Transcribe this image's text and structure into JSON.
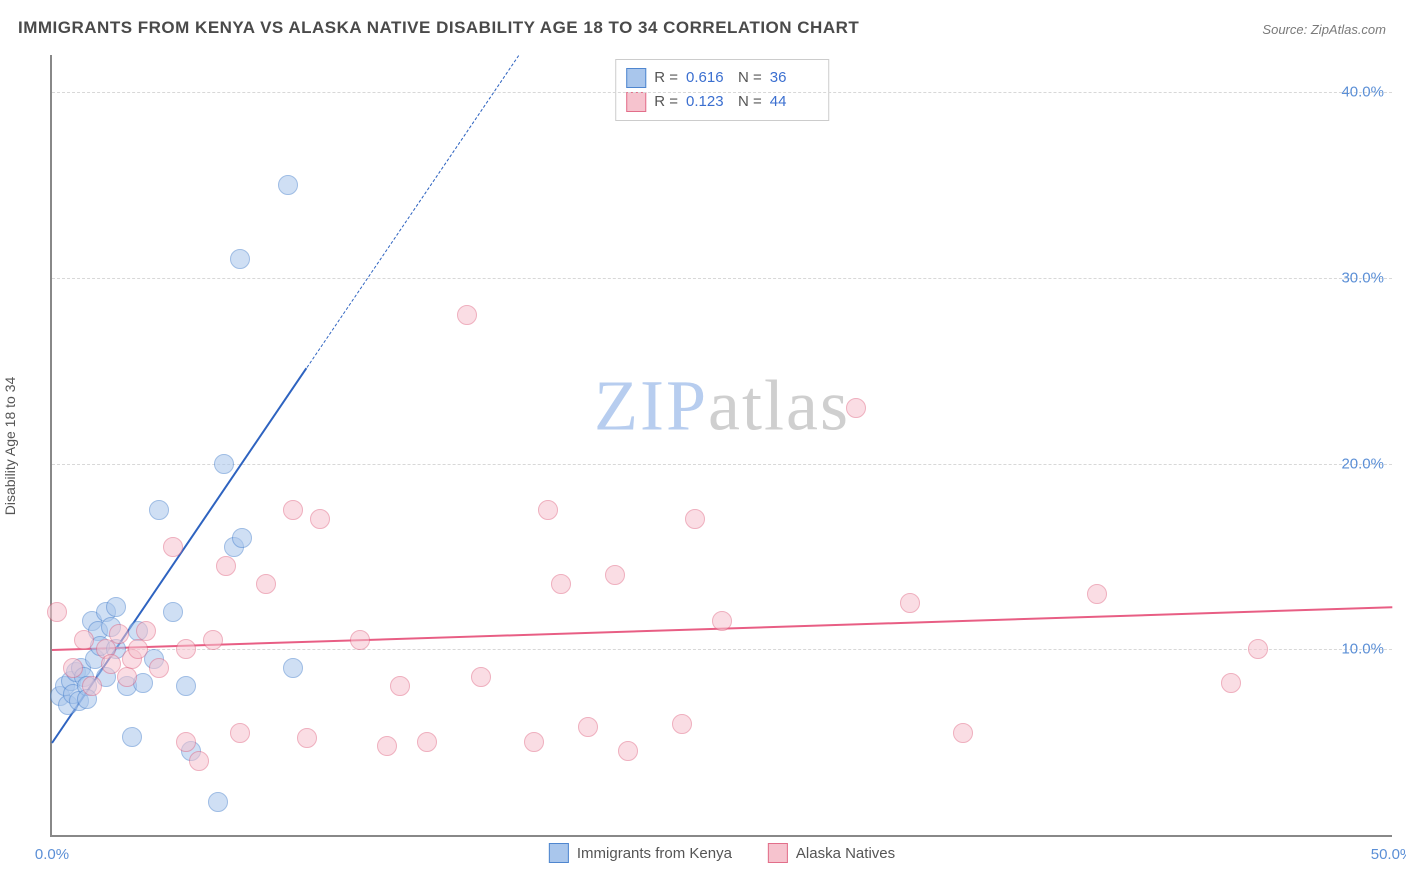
{
  "title": "IMMIGRANTS FROM KENYA VS ALASKA NATIVE DISABILITY AGE 18 TO 34 CORRELATION CHART",
  "source_label": "Source:",
  "source_value": "ZipAtlas.com",
  "y_axis_title": "Disability Age 18 to 34",
  "watermark_a": "ZIP",
  "watermark_b": "atlas",
  "chart": {
    "type": "scatter",
    "xlim": [
      0,
      50
    ],
    "ylim": [
      0,
      42
    ],
    "x_ticks": [
      0,
      50
    ],
    "x_tick_labels": [
      "0.0%",
      "50.0%"
    ],
    "y_ticks": [
      10,
      20,
      30,
      40
    ],
    "y_tick_labels": [
      "10.0%",
      "20.0%",
      "30.0%",
      "40.0%"
    ],
    "grid_color": "#d8d8d8",
    "axis_color": "#888888",
    "background_color": "#ffffff",
    "tick_label_color": "#5b8fd6",
    "tick_fontsize": 15,
    "title_fontsize": 17,
    "title_color": "#4a4a4a",
    "marker_radius": 9,
    "marker_opacity": 0.55,
    "series": [
      {
        "key": "kenya",
        "label": "Immigrants from Kenya",
        "marker_fill": "#a9c6ec",
        "marker_stroke": "#4f86cf",
        "trend_color": "#2e63c0",
        "trend_width": 2.5,
        "trend_dash_extension": true,
        "R": "0.616",
        "N": "36",
        "trend": {
          "x1": 0,
          "y1": 5.0,
          "x2": 9.5,
          "y2": 25.2
        },
        "trend_ext": {
          "x1": 9.5,
          "y1": 25.2,
          "x2": 17.4,
          "y2": 42.0
        },
        "points": [
          [
            0.3,
            7.5
          ],
          [
            0.5,
            8.0
          ],
          [
            0.6,
            7.0
          ],
          [
            0.7,
            8.3
          ],
          [
            0.8,
            7.6
          ],
          [
            0.9,
            8.8
          ],
          [
            1.0,
            7.2
          ],
          [
            1.1,
            9.0
          ],
          [
            1.2,
            8.5
          ],
          [
            1.3,
            8.0
          ],
          [
            1.3,
            7.3
          ],
          [
            1.5,
            11.5
          ],
          [
            1.6,
            9.5
          ],
          [
            1.7,
            11.0
          ],
          [
            1.8,
            10.2
          ],
          [
            2.0,
            12.0
          ],
          [
            2.0,
            8.5
          ],
          [
            2.2,
            11.2
          ],
          [
            2.4,
            10.0
          ],
          [
            2.4,
            12.3
          ],
          [
            2.8,
            8.0
          ],
          [
            3.0,
            5.3
          ],
          [
            3.2,
            11.0
          ],
          [
            3.4,
            8.2
          ],
          [
            3.8,
            9.5
          ],
          [
            4.0,
            17.5
          ],
          [
            4.5,
            12.0
          ],
          [
            5.0,
            8.0
          ],
          [
            5.2,
            4.5
          ],
          [
            6.2,
            1.8
          ],
          [
            6.4,
            20.0
          ],
          [
            6.8,
            15.5
          ],
          [
            7.0,
            31.0
          ],
          [
            7.1,
            16.0
          ],
          [
            8.8,
            35.0
          ],
          [
            9.0,
            9.0
          ]
        ]
      },
      {
        "key": "alaska",
        "label": "Alaska Natives",
        "marker_fill": "#f6c3ce",
        "marker_stroke": "#e26e8a",
        "trend_color": "#e85e84",
        "trend_width": 2.5,
        "trend_dash_extension": false,
        "R": "0.123",
        "N": "44",
        "trend": {
          "x1": 0,
          "y1": 10.0,
          "x2": 50,
          "y2": 12.3
        },
        "points": [
          [
            0.2,
            12.0
          ],
          [
            0.8,
            9.0
          ],
          [
            1.2,
            10.5
          ],
          [
            1.5,
            8.0
          ],
          [
            2.0,
            10.0
          ],
          [
            2.2,
            9.2
          ],
          [
            2.5,
            10.8
          ],
          [
            2.8,
            8.5
          ],
          [
            3.0,
            9.5
          ],
          [
            3.2,
            10.0
          ],
          [
            3.5,
            11.0
          ],
          [
            4.0,
            9.0
          ],
          [
            4.5,
            15.5
          ],
          [
            5.0,
            10.0
          ],
          [
            5.0,
            5.0
          ],
          [
            5.5,
            4.0
          ],
          [
            6.0,
            10.5
          ],
          [
            6.5,
            14.5
          ],
          [
            7.0,
            5.5
          ],
          [
            8.0,
            13.5
          ],
          [
            9.0,
            17.5
          ],
          [
            9.5,
            5.2
          ],
          [
            10.0,
            17.0
          ],
          [
            11.5,
            10.5
          ],
          [
            12.5,
            4.8
          ],
          [
            13.0,
            8.0
          ],
          [
            14.0,
            5.0
          ],
          [
            15.5,
            28.0
          ],
          [
            16.0,
            8.5
          ],
          [
            18.0,
            5.0
          ],
          [
            18.5,
            17.5
          ],
          [
            19.0,
            13.5
          ],
          [
            20.0,
            5.8
          ],
          [
            21.0,
            14.0
          ],
          [
            21.5,
            4.5
          ],
          [
            23.5,
            6.0
          ],
          [
            24.0,
            17.0
          ],
          [
            25.0,
            11.5
          ],
          [
            30.0,
            23.0
          ],
          [
            32.0,
            12.5
          ],
          [
            34.0,
            5.5
          ],
          [
            39.0,
            13.0
          ],
          [
            44.0,
            8.2
          ],
          [
            45.0,
            10.0
          ]
        ]
      }
    ]
  },
  "legend_stats_labels": {
    "R": "R =",
    "N": "N ="
  }
}
